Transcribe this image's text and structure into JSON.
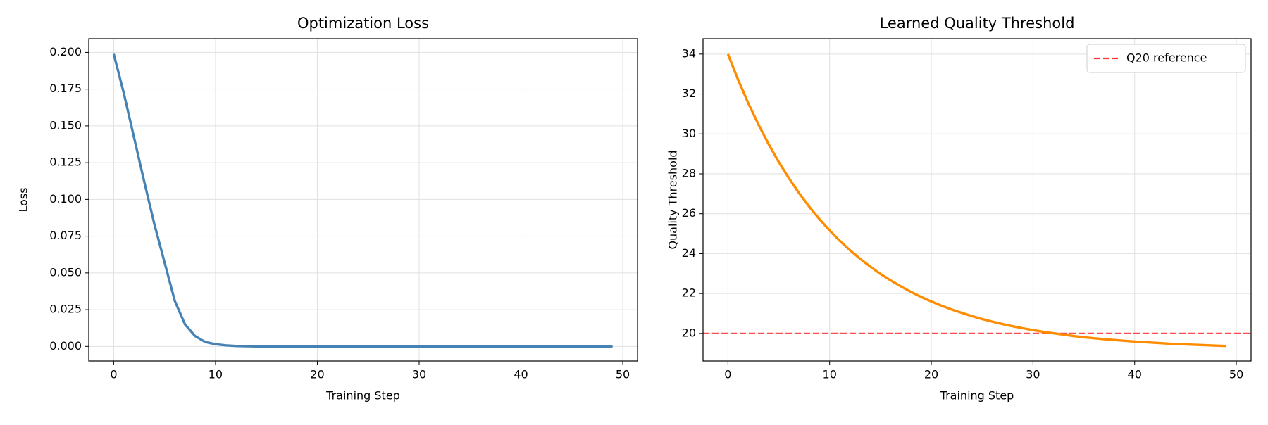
{
  "chart_data": [
    {
      "type": "line",
      "title": "Optimization Loss",
      "xlabel": "Training Step",
      "ylabel": "Loss",
      "x": [
        0,
        1,
        2,
        3,
        4,
        5,
        6,
        7,
        8,
        9,
        10,
        11,
        12,
        13,
        14,
        15,
        16,
        17,
        18,
        19,
        20,
        21,
        22,
        23,
        24,
        25,
        26,
        27,
        28,
        29,
        30,
        31,
        32,
        33,
        34,
        35,
        36,
        37,
        38,
        39,
        40,
        41,
        42,
        43,
        44,
        45,
        46,
        47,
        48,
        49
      ],
      "series": [
        {
          "name": "Loss",
          "color": "#4682b4",
          "values": [
            0.199,
            0.172,
            0.142,
            0.112,
            0.083,
            0.057,
            0.031,
            0.015,
            0.007,
            0.003,
            0.0015,
            0.0007,
            0.0003,
            0.0001,
            0,
            0,
            0,
            0,
            0,
            0,
            0,
            0,
            0,
            0,
            0,
            0,
            0,
            0,
            0,
            0,
            0,
            0,
            0,
            0,
            0,
            0,
            0,
            0,
            0,
            0,
            0,
            0,
            0,
            0,
            0,
            0,
            0,
            0,
            0,
            0
          ]
        }
      ],
      "xlim": [
        -2.45,
        51.45
      ],
      "xticks": [
        0,
        10,
        20,
        30,
        40,
        50
      ],
      "ylim": [
        -0.0099,
        0.2093
      ],
      "yticks": [
        {
          "value": 0,
          "label": "0.000"
        },
        {
          "value": 0.025,
          "label": "0.025"
        },
        {
          "value": 0.05,
          "label": "0.050"
        },
        {
          "value": 0.075,
          "label": "0.075"
        },
        {
          "value": 0.1,
          "label": "0.100"
        },
        {
          "value": 0.125,
          "label": "0.125"
        },
        {
          "value": 0.15,
          "label": "0.150"
        },
        {
          "value": 0.175,
          "label": "0.175"
        },
        {
          "value": 0.2,
          "label": "0.200"
        }
      ],
      "grid": true
    },
    {
      "type": "line",
      "title": "Learned Quality Threshold",
      "xlabel": "Training Step",
      "ylabel": "Quality Threshold",
      "x": [
        0,
        1,
        2,
        3,
        4,
        5,
        6,
        7,
        8,
        9,
        10,
        11,
        12,
        13,
        14,
        15,
        16,
        17,
        18,
        19,
        20,
        21,
        22,
        23,
        24,
        25,
        26,
        27,
        28,
        29,
        30,
        31,
        32,
        33,
        34,
        35,
        36,
        37,
        38,
        39,
        40,
        41,
        42,
        43,
        44,
        45,
        46,
        47,
        48,
        49
      ],
      "series": [
        {
          "name": "Quality Threshold",
          "color": "#ff8c00",
          "values": [
            34.0,
            32.71,
            31.54,
            30.47,
            29.49,
            28.59,
            27.78,
            27.03,
            26.35,
            25.73,
            25.16,
            24.64,
            24.17,
            23.74,
            23.35,
            22.98,
            22.66,
            22.36,
            22.08,
            21.83,
            21.6,
            21.39,
            21.2,
            21.03,
            20.87,
            20.72,
            20.59,
            20.47,
            20.36,
            20.26,
            20.17,
            20.08,
            20.01,
            19.94,
            19.87,
            19.81,
            19.76,
            19.71,
            19.67,
            19.63,
            19.59,
            19.56,
            19.53,
            19.5,
            19.47,
            19.45,
            19.43,
            19.41,
            19.39,
            19.37
          ]
        }
      ],
      "reference_lines": [
        {
          "name": "Q20 reference",
          "value": 20,
          "color": "#ff3333",
          "dashed": true
        }
      ],
      "xlim": [
        -2.45,
        51.45
      ],
      "xticks": [
        0,
        10,
        20,
        30,
        40,
        50
      ],
      "ylim": [
        18.62,
        34.77
      ],
      "yticks": [
        20,
        22,
        24,
        26,
        28,
        30,
        32,
        34
      ],
      "grid": true,
      "legend": "upper right"
    }
  ]
}
